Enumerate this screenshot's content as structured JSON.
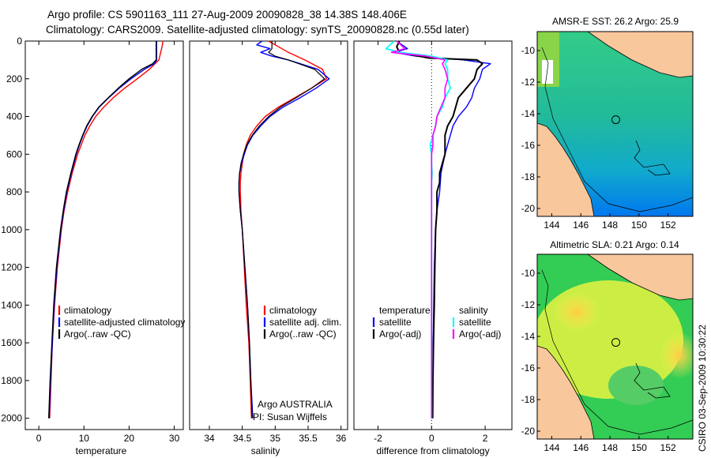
{
  "header": {
    "line1": "Argo profile: CS 5901163_111 27-Aug-2009 20090828_38 14.38S 148.406E",
    "line2": "Climatology: CARS2009. Satellite-adjusted climatology: synTS_20090828.nc (0.55d later)"
  },
  "colors": {
    "climatology": "#ff0000",
    "satellite": "#0000ff",
    "argo": "#000000",
    "sal_satellite": "#00ffff",
    "sal_argo": "#ff00ff"
  },
  "chart_data": [
    {
      "id": "temperature",
      "type": "line",
      "xlabel": "temperature",
      "ylabel": "",
      "xlim": [
        -3,
        32
      ],
      "ylim": [
        2060,
        0
      ],
      "xticks": [
        0,
        10,
        20,
        30
      ],
      "yticks": [
        0,
        200,
        400,
        600,
        800,
        1000,
        1200,
        1400,
        1600,
        1800,
        2000
      ],
      "series": [
        {
          "name": "climatology",
          "color": "#ff0000",
          "width": 1.4,
          "depth": [
            0,
            30,
            60,
            100,
            150,
            200,
            250,
            300,
            350,
            400,
            450,
            500,
            550,
            600,
            700,
            800,
            900,
            1000,
            1200,
            1400,
            1600,
            1800,
            2000
          ],
          "values": [
            27.5,
            27.3,
            27.0,
            26.6,
            24.5,
            21.8,
            19.0,
            16.5,
            14.4,
            12.6,
            11.3,
            10.2,
            9.4,
            8.6,
            7.4,
            6.4,
            5.6,
            5.0,
            4.1,
            3.5,
            3.0,
            2.7,
            2.4
          ]
        },
        {
          "name": "satellite-adjusted climatology",
          "color": "#0000ff",
          "width": 1.4,
          "depth": [
            0,
            30,
            60,
            100,
            120,
            150,
            200,
            250,
            300,
            350,
            400,
            450,
            500,
            550,
            600,
            700,
            800,
            900,
            1000,
            1200,
            1400,
            1600,
            1800,
            2000
          ],
          "values": [
            26.1,
            26.1,
            26.1,
            26.1,
            25.6,
            23.4,
            20.4,
            17.8,
            15.5,
            13.4,
            11.9,
            10.7,
            9.8,
            9.0,
            8.3,
            7.2,
            6.2,
            5.5,
            4.9,
            4.0,
            3.4,
            3.0,
            2.6,
            2.3
          ]
        },
        {
          "name": "Argo(..raw -QC)",
          "color": "#000000",
          "width": 1.4,
          "depth": [
            0,
            30,
            60,
            100,
            120,
            150,
            200,
            250,
            300,
            350,
            400,
            450,
            500,
            550,
            600,
            700,
            800,
            900,
            1000,
            1200,
            1400,
            1600,
            1800,
            2000
          ],
          "values": [
            26.0,
            26.0,
            26.0,
            26.0,
            25.2,
            22.8,
            20.0,
            17.6,
            15.4,
            13.3,
            11.8,
            10.6,
            9.7,
            8.9,
            8.2,
            7.1,
            6.1,
            5.4,
            4.8,
            3.9,
            3.3,
            2.9,
            2.5,
            2.2
          ]
        }
      ],
      "legend": [
        {
          "label": "climatology",
          "color": "#ff0000"
        },
        {
          "label": "satellite-adjusted climatology",
          "color": "#0000ff"
        },
        {
          "label": "Argo(..raw -QC)",
          "color": "#000000"
        }
      ]
    },
    {
      "id": "salinity",
      "type": "line",
      "xlabel": "salinity",
      "ylabel": "",
      "xlim": [
        33.7,
        36.1
      ],
      "ylim": [
        2060,
        0
      ],
      "xticks": [
        34,
        34.5,
        35,
        35.5,
        36
      ],
      "yticks": [],
      "series": [
        {
          "name": "climatology",
          "color": "#ff0000",
          "width": 1.4,
          "depth": [
            0,
            30,
            60,
            100,
            150,
            200,
            250,
            300,
            350,
            400,
            450,
            500,
            550,
            600,
            650,
            700,
            750,
            800,
            900,
            1000,
            1200,
            1400,
            1600,
            1800,
            2000
          ],
          "values": [
            34.9,
            35.05,
            35.2,
            35.45,
            35.72,
            35.78,
            35.55,
            35.3,
            35.05,
            34.85,
            34.72,
            34.62,
            34.56,
            34.52,
            34.5,
            34.48,
            34.47,
            34.47,
            34.48,
            34.5,
            34.53,
            34.56,
            34.6,
            34.62,
            34.64
          ]
        },
        {
          "name": "satellite adj. clim.",
          "color": "#0000ff",
          "width": 1.4,
          "depth": [
            0,
            20,
            40,
            60,
            80,
            100,
            150,
            200,
            250,
            300,
            350,
            400,
            450,
            500,
            550,
            600,
            650,
            700,
            750,
            800,
            900,
            1000,
            1200,
            1400,
            1600,
            1800,
            2000
          ],
          "values": [
            34.8,
            34.72,
            34.92,
            34.78,
            34.95,
            35.2,
            35.65,
            35.82,
            35.62,
            35.38,
            35.12,
            34.92,
            34.78,
            34.66,
            34.58,
            34.53,
            34.49,
            34.46,
            34.45,
            34.45,
            34.47,
            34.5,
            34.54,
            34.58,
            34.61,
            34.63,
            34.66
          ]
        },
        {
          "name": "Argo(..raw -QC)",
          "color": "#000000",
          "width": 1.2,
          "depth": [
            0,
            40,
            60,
            80,
            100,
            150,
            200,
            250,
            300,
            350,
            400,
            450,
            500,
            550,
            600,
            650,
            700,
            750,
            800,
            900,
            1000,
            1200,
            1400,
            1600,
            1800,
            2000
          ],
          "values": [
            34.95,
            34.95,
            34.9,
            35.0,
            35.2,
            35.6,
            35.75,
            35.55,
            35.32,
            35.08,
            34.9,
            34.76,
            34.65,
            34.57,
            34.52,
            34.48,
            34.46,
            34.45,
            34.45,
            34.47,
            34.5,
            34.54,
            34.58,
            34.61,
            34.63,
            34.65
          ]
        }
      ],
      "legend": [
        {
          "label": "climatology",
          "color": "#ff0000"
        },
        {
          "label": "satellite adj. clim.",
          "color": "#0000ff"
        },
        {
          "label": "Argo(..raw -QC)",
          "color": "#000000"
        }
      ],
      "annotation": [
        "Argo AUSTRALIA",
        "PI: Susan Wijffels"
      ]
    },
    {
      "id": "difference",
      "type": "line",
      "xlabel": "difference from climatology",
      "ylabel": "",
      "xlim": [
        -2.9,
        3.0
      ],
      "ylim": [
        2060,
        0
      ],
      "xticks": [
        -2,
        0,
        2
      ],
      "yticks": [],
      "zero_line": true,
      "series": [
        {
          "name": "temperature satellite",
          "color": "#0000ff",
          "width": 1.4,
          "depth": [
            0,
            40,
            60,
            80,
            100,
            120,
            150,
            200,
            250,
            300,
            350,
            400,
            450,
            500,
            550,
            600,
            700,
            800,
            900,
            1000,
            1200,
            1400,
            1600,
            1800,
            2000
          ],
          "values": [
            -1.3,
            -0.9,
            -1.4,
            -0.6,
            1.2,
            2.2,
            1.9,
            1.8,
            1.6,
            1.5,
            1.3,
            1.0,
            0.8,
            0.7,
            0.6,
            0.5,
            0.35,
            0.3,
            0.2,
            0.15,
            0.1,
            0.08,
            0.06,
            0.05,
            0.03
          ]
        },
        {
          "name": "temperature Argo(-adj)",
          "color": "#000000",
          "width": 2.0,
          "depth": [
            0,
            30,
            60,
            90,
            100,
            120,
            150,
            200,
            250,
            300,
            350,
            400,
            450,
            500,
            550,
            600,
            650,
            700,
            750,
            800,
            900,
            1000,
            1200,
            1400,
            1600,
            1800,
            2000
          ],
          "values": [
            -1.2,
            -1.3,
            -1.2,
            -0.1,
            1.7,
            1.9,
            1.7,
            1.6,
            1.3,
            1.0,
            0.9,
            0.8,
            0.6,
            0.5,
            0.5,
            0.5,
            0.4,
            0.3,
            0.3,
            0.2,
            0.2,
            0.15,
            0.12,
            0.1,
            0.07,
            0.05,
            0.04
          ]
        },
        {
          "name": "salinity satellite",
          "color": "#00ffff",
          "width": 1.8,
          "depth": [
            0,
            40,
            60,
            80,
            100,
            120,
            150,
            200,
            250,
            300,
            350,
            400,
            450,
            500,
            550,
            600,
            650,
            700,
            750,
            800,
            900,
            1000,
            1200,
            1400,
            1600,
            1800,
            2000
          ],
          "values": [
            -1.4,
            -1.7,
            -1.2,
            0.0,
            0.6,
            0.5,
            0.6,
            0.6,
            0.7,
            0.5,
            0.4,
            0.2,
            0.15,
            0.05,
            -0.05,
            0.0,
            0.0,
            0.02,
            0.0,
            0.0,
            0.0,
            0.0,
            0.0,
            0.0,
            0.0,
            0.0,
            0.0
          ]
        },
        {
          "name": "salinity Argo(-adj)",
          "color": "#ff00ff",
          "width": 1.6,
          "depth": [
            0,
            40,
            60,
            80,
            100,
            120,
            150,
            200,
            250,
            300,
            350,
            400,
            450,
            500,
            550,
            600,
            700,
            800,
            1000,
            1200,
            1400,
            1600,
            1800,
            2000
          ],
          "values": [
            -1.3,
            -1.0,
            -1.5,
            -0.2,
            0.5,
            0.4,
            0.5,
            0.6,
            0.5,
            0.5,
            0.35,
            0.2,
            0.15,
            0.05,
            0.05,
            0.0,
            0.0,
            0.0,
            0.0,
            0.0,
            0.0,
            0.0,
            0.0,
            0.0
          ]
        }
      ],
      "legend_temperature": {
        "title": "temperature",
        "items": [
          {
            "label": "satellite",
            "color": "#0000ff"
          },
          {
            "label": "Argo(-adj)",
            "color": "#000000"
          }
        ]
      },
      "legend_salinity": {
        "title": "salinity",
        "items": [
          {
            "label": "satellite",
            "color": "#00ffff"
          },
          {
            "label": "Argo(-adj)",
            "color": "#ff00ff"
          }
        ]
      }
    },
    {
      "id": "sst_map",
      "type": "heatmap",
      "title": "AMSR-E SST: 26.2  Argo: 25.9",
      "xlim": [
        143,
        153.7
      ],
      "ylim": [
        -20.5,
        -8.8
      ],
      "xticks": [
        144,
        146,
        148,
        150,
        152
      ],
      "yticks": [
        -10,
        -12,
        -14,
        -16,
        -18,
        -20
      ],
      "argo_position": {
        "lon": 148.406,
        "lat": -14.38
      }
    },
    {
      "id": "sla_map",
      "type": "heatmap",
      "title": "Altimetric SLA: 0.21  Argo: 0.14",
      "xlim": [
        143,
        153.7
      ],
      "ylim": [
        -20.5,
        -8.8
      ],
      "xticks": [
        144,
        146,
        148,
        150,
        152
      ],
      "yticks": [
        -10,
        -12,
        -14,
        -16,
        -18,
        -20
      ],
      "argo_position": {
        "lon": 148.406,
        "lat": -14.38
      }
    }
  ],
  "footer": {
    "stamp": "CSIRO 03-Sep-2009 10:30:22"
  }
}
